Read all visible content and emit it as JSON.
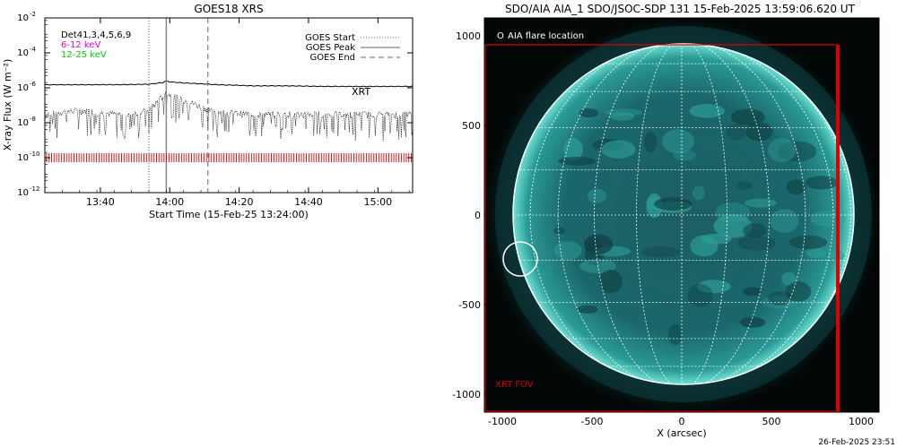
{
  "chart_data": [
    {
      "type": "line",
      "title": "GOES18 XRS",
      "xlabel": "Start Time (15-Feb-25 13:24:00)",
      "ylabel": "X-ray Flux (W m⁻²)",
      "yscale": "log",
      "ylim": [
        1e-12,
        0.01
      ],
      "xlim_minutes_after_13_24": [
        0,
        106
      ],
      "x_tick_labels": [
        "13:40",
        "14:00",
        "14:20",
        "14:40",
        "15:00"
      ],
      "x_tick_minutes": [
        16,
        36,
        56,
        76,
        96
      ],
      "y_tick_labels": [
        {
          "base": "10",
          "exp": "-2"
        },
        {
          "base": "10",
          "exp": "-4"
        },
        {
          "base": "10",
          "exp": "-6"
        },
        {
          "base": "10",
          "exp": "-8"
        },
        {
          "base": "10",
          "exp": "-10"
        },
        {
          "base": "10",
          "exp": "-12"
        }
      ],
      "y_tick_exponents": [
        -2,
        -4,
        -6,
        -8,
        -10,
        -12
      ],
      "legend_left": [
        {
          "text": "Det41,3,4,5,6,9",
          "color": "#000000"
        },
        {
          "text": "6-12 keV",
          "color": "#e000e0"
        },
        {
          "text": "12-25 keV",
          "color": "#00cc00"
        }
      ],
      "legend_right": [
        {
          "text": "GOES Start",
          "style": "dotted"
        },
        {
          "text": "GOES Peak",
          "style": "solid"
        },
        {
          "text": "GOES End",
          "style": "dashed"
        }
      ],
      "xrt_label": "XRT",
      "xrt_color": "#dd0000",
      "event_lines_minutes": {
        "start": 30,
        "peak": 35,
        "end": 47
      },
      "series": [
        {
          "name": "GOES long channel",
          "x_minutes": [
            0,
            10,
            20,
            30,
            34,
            35,
            36,
            40,
            45,
            50,
            60,
            70,
            80,
            90,
            100,
            106
          ],
          "y": [
            1.5e-06,
            1.5e-06,
            1.5e-06,
            1.6e-06,
            2e-06,
            2.5e-06,
            2.2e-06,
            1.9e-06,
            1.7e-06,
            1.5e-06,
            1.3e-06,
            1.3e-06,
            1.2e-06,
            1.2e-06,
            1.2e-06,
            1.2e-06
          ]
        },
        {
          "name": "GOES short channel",
          "x_minutes": [
            0,
            5,
            10,
            15,
            20,
            25,
            30,
            33,
            35,
            37,
            40,
            45,
            50,
            60,
            70,
            80,
            90,
            100,
            106
          ],
          "y": [
            3e-08,
            4e-08,
            5e-08,
            4e-08,
            3e-08,
            3e-08,
            5e-08,
            2e-07,
            5e-07,
            3e-07,
            2e-07,
            8e-08,
            4e-08,
            3e-08,
            3e-08,
            3e-08,
            3e-08,
            3e-08,
            3e-08
          ]
        }
      ],
      "xrt_tick_level": 1e-10
    },
    {
      "type": "image",
      "title": "SDO/AIA AIA_1 SDO/JSOC-SDP 131 15-Feb-2025 13:59:06.620 UT",
      "xlabel": "X (arcsec)",
      "ylabel": "",
      "xlim": [
        -1100,
        1100
      ],
      "ylim": [
        -1100,
        1100
      ],
      "x_ticks": [
        "-1000",
        "-500",
        "0",
        "500",
        "1000"
      ],
      "y_ticks": [
        "1000",
        "500",
        "0",
        "-500",
        "-1000"
      ],
      "x_tick_values": [
        -1000,
        -500,
        0,
        500,
        1000
      ],
      "y_tick_values": [
        1000,
        500,
        0,
        -500,
        -1000
      ],
      "flare_label": "AIA flare location",
      "flare_symbol": "O",
      "flare_location_arcsec": [
        -900,
        -245
      ],
      "solar_radius_arcsec": 975,
      "fov_label": "XRT FOV",
      "fov_arcsec": {
        "x": [
          -1100,
          870
        ],
        "y": [
          -1100,
          950
        ]
      },
      "fov_color": "#dd0000",
      "disk_color": "#1f8a86"
    }
  ],
  "footer_timestamp": "26-Feb-2025 23:51"
}
